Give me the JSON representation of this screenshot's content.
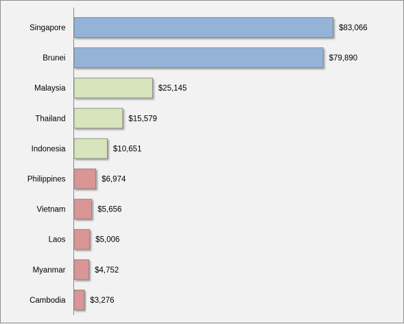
{
  "chart_data": {
    "type": "bar",
    "orientation": "horizontal",
    "title": "",
    "xlabel": "",
    "ylabel": "",
    "categories": [
      "Singapore",
      "Brunei",
      "Malaysia",
      "Thailand",
      "Indonesia",
      "Philippines",
      "Vietnam",
      "Laos",
      "Myanmar",
      "Cambodia"
    ],
    "values": [
      83066,
      79890,
      25145,
      15579,
      10651,
      6974,
      5656,
      5006,
      4752,
      3276
    ],
    "value_labels": [
      "$83,066",
      "$79,890",
      "$25,145",
      "$15,579",
      "$10,651",
      "$6,974",
      "$5,656",
      "$5,006",
      "$4,752",
      "$3,276"
    ],
    "xlim": [
      0,
      88000
    ],
    "grid": false,
    "legend": "none",
    "colors": {
      "high": "#95b3d7",
      "medium": "#d7e4bc",
      "low": "#d99694",
      "background": "#f2f2f2"
    },
    "color_groups": [
      "high",
      "high",
      "medium",
      "medium",
      "medium",
      "low",
      "low",
      "low",
      "low",
      "low"
    ]
  }
}
